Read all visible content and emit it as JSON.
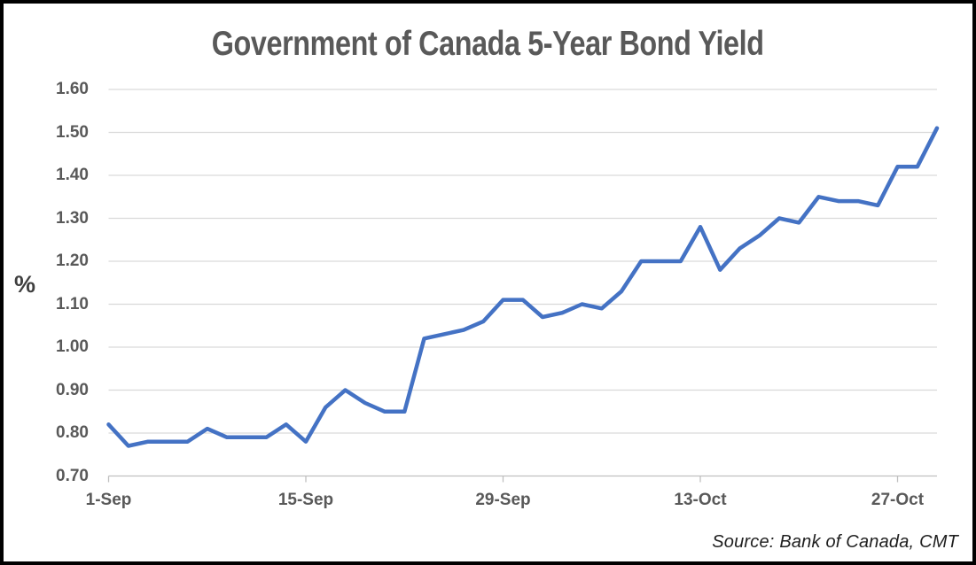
{
  "title": "Government of Canada 5-Year Bond Yield",
  "source": {
    "text": "Source: Bank of Canada, CMT"
  },
  "colors": {
    "line": "#4472C4",
    "gridline": "#d9d9d9",
    "axis": "#bfbfbf",
    "tick": "#bfbfbf",
    "title_text": "#595959",
    "axis_labels": "#595959",
    "unit_label": "#3f3f3f",
    "source_text": "#1f1f1f",
    "border": "#000000",
    "background": "#ffffff"
  },
  "chart_data": {
    "type": "line",
    "title": "Government of Canada 5-Year Bond Yield",
    "ylabel": "%",
    "xlabel": "",
    "ylim": [
      0.7,
      1.6
    ],
    "grid": "horizontal",
    "legend": "none",
    "yticks": [
      0.7,
      0.8,
      0.9,
      1.0,
      1.1,
      1.2,
      1.3,
      1.4,
      1.5,
      1.6
    ],
    "ytick_format": "2dp",
    "x": [
      "1-Sep",
      "2-Sep",
      "3-Sep",
      "6-Sep",
      "7-Sep",
      "8-Sep",
      "9-Sep",
      "10-Sep",
      "13-Sep",
      "14-Sep",
      "15-Sep",
      "16-Sep",
      "17-Sep",
      "20-Sep",
      "21-Sep",
      "22-Sep",
      "23-Sep",
      "24-Sep",
      "27-Sep",
      "28-Sep",
      "29-Sep",
      "30-Sep",
      "1-Oct",
      "4-Oct",
      "5-Oct",
      "6-Oct",
      "7-Oct",
      "8-Oct",
      "11-Oct",
      "12-Oct",
      "13-Oct",
      "14-Oct",
      "15-Oct",
      "18-Oct",
      "19-Oct",
      "20-Oct",
      "21-Oct",
      "22-Oct",
      "25-Oct",
      "26-Oct",
      "27-Oct",
      "28-Oct",
      "29-Oct"
    ],
    "series": [
      {
        "name": "Government of Canada 5-year bond yield (%)",
        "values": [
          0.82,
          0.77,
          0.78,
          0.78,
          0.78,
          0.81,
          0.79,
          0.79,
          0.79,
          0.82,
          0.78,
          0.86,
          0.9,
          0.87,
          0.85,
          0.85,
          1.02,
          1.03,
          1.04,
          1.06,
          1.11,
          1.11,
          1.07,
          1.08,
          1.1,
          1.09,
          1.13,
          1.2,
          1.2,
          1.2,
          1.28,
          1.18,
          1.23,
          1.26,
          1.3,
          1.29,
          1.35,
          1.34,
          1.34,
          1.33,
          1.42,
          1.42,
          1.51
        ]
      }
    ],
    "xticks": [
      {
        "index": 0,
        "label": "1-Sep"
      },
      {
        "index": 10,
        "label": "15-Sep"
      },
      {
        "index": 20,
        "label": "29-Sep"
      },
      {
        "index": 30,
        "label": "13-Oct"
      },
      {
        "index": 40,
        "label": "27-Oct"
      }
    ]
  }
}
